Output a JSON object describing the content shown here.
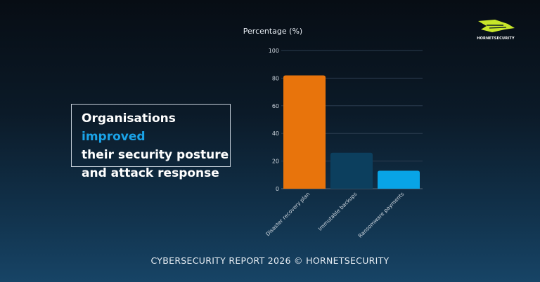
{
  "callout": {
    "pre": "Organisations ",
    "highlight": "improved",
    "line2": "their security posture",
    "line3": "and attack response"
  },
  "footer": "CYBERSECURITY REPORT 2026 © HORNETSECURITY",
  "logo": {
    "text": "HORNETSECURITY",
    "color": "#c8e62a"
  },
  "chart_data": {
    "type": "bar",
    "title": "",
    "ylabel": "Percentage (%)",
    "xlabel": "",
    "ylim": [
      0,
      100
    ],
    "yticks": [
      0,
      20,
      40,
      60,
      80,
      100
    ],
    "grid": true,
    "categories": [
      "Disaster recovery plan",
      "Immutable backups",
      "Ransomware payments"
    ],
    "values": [
      82,
      26,
      13
    ],
    "colors": [
      "#e8740c",
      "#0c3f5e",
      "#08a4e6"
    ]
  }
}
